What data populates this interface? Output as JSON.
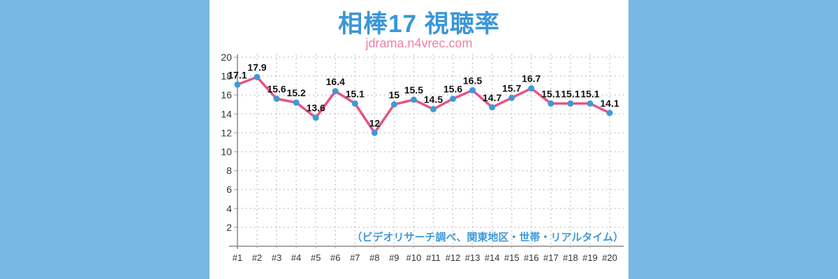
{
  "page": {
    "title": "相棒17 視聴率",
    "subtitle": "jdrama.n4vrec.com",
    "source_note": "（ビデオリサーチ調べ、関東地区・世帯・リアルタイム）"
  },
  "colors": {
    "page_background": "#77b9e4",
    "panel_background": "#ffffff",
    "title": "#3a96d8",
    "subtitle": "#ee7fa6",
    "line": "#e85383",
    "marker": "#3d9ad8",
    "axis": "#8c8c8c",
    "grid": "#bdbdbd",
    "tick_text": "#333333",
    "data_label": "#111111",
    "note": "#3f9ad9"
  },
  "chart_data": {
    "type": "line",
    "title": "相棒17 視聴率",
    "subtitle": "jdrama.n4vrec.com",
    "annotation": "（ビデオリサーチ調べ、関東地区・世帯・リアルタイム）",
    "categories": [
      "#1",
      "#2",
      "#3",
      "#4",
      "#5",
      "#6",
      "#7",
      "#8",
      "#9",
      "#10",
      "#11",
      "#12",
      "#13",
      "#14",
      "#15",
      "#16",
      "#17",
      "#18",
      "#19",
      "#20"
    ],
    "values": [
      17.1,
      17.9,
      15.6,
      15.2,
      13.6,
      16.4,
      15.1,
      12,
      15,
      15.5,
      14.5,
      15.6,
      16.5,
      14.7,
      15.7,
      16.7,
      15.1,
      15.1,
      15.1,
      14.1
    ],
    "xlabel": "",
    "ylabel": "",
    "ylim": [
      0,
      20
    ],
    "yticks": [
      2,
      4,
      6,
      8,
      10,
      12,
      14,
      16,
      18,
      20
    ],
    "grid": true,
    "grid_style": "dotted",
    "marker": "circle",
    "data_labels": true,
    "legend": "none"
  }
}
